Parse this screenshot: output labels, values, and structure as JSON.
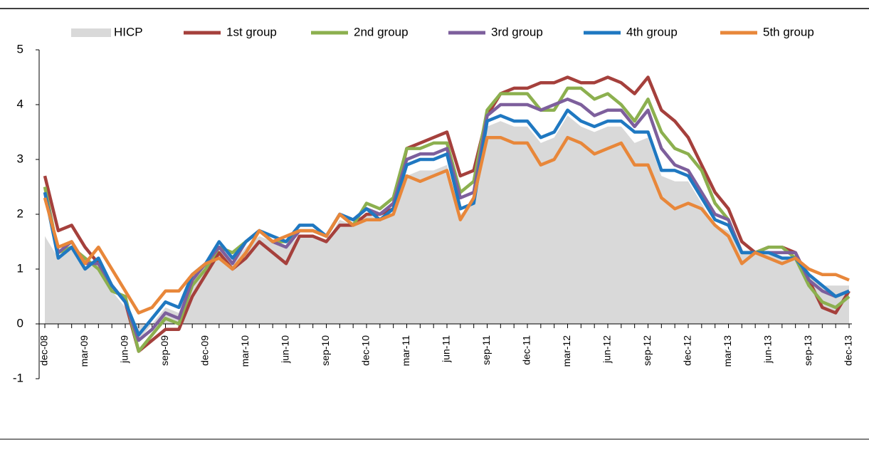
{
  "chart_data": {
    "type": "line",
    "categories": [
      "dec-08",
      null,
      null,
      "mar-09",
      null,
      null,
      "jun-09",
      null,
      null,
      "sep-09",
      null,
      null,
      "dec-09",
      null,
      null,
      "mar-10",
      null,
      null,
      "jun-10",
      null,
      null,
      "sep-10",
      null,
      null,
      "dec-10",
      null,
      null,
      "mar-11",
      null,
      null,
      "jun-11",
      null,
      null,
      "sep-11",
      null,
      null,
      "dec-11",
      null,
      null,
      "mar-12",
      null,
      null,
      "jun-12",
      null,
      null,
      "sep-12",
      null,
      null,
      "dec-12",
      null,
      null,
      "mar-13",
      null,
      null,
      "jun-13",
      null,
      null,
      "sep-13",
      null,
      null,
      "dec-13"
    ],
    "series": [
      {
        "name": "HICP",
        "kind": "area",
        "color": "#d9d9d9",
        "values": [
          1.6,
          1.2,
          1.4,
          1.0,
          1.1,
          0.6,
          0.3,
          -0.3,
          0.0,
          0.3,
          0.2,
          0.8,
          1.0,
          1.3,
          1.1,
          1.4,
          1.6,
          1.5,
          1.4,
          1.6,
          1.6,
          1.5,
          1.9,
          1.8,
          2.0,
          1.9,
          2.0,
          2.7,
          2.8,
          2.8,
          2.9,
          2.0,
          2.2,
          3.6,
          3.7,
          3.6,
          3.6,
          3.3,
          3.4,
          3.8,
          3.6,
          3.5,
          3.6,
          3.6,
          3.3,
          3.4,
          2.7,
          2.6,
          2.6,
          2.2,
          1.8,
          1.7,
          1.3,
          1.3,
          1.3,
          1.2,
          1.2,
          0.9,
          0.7,
          0.7,
          0.7
        ]
      },
      {
        "name": "1st group",
        "kind": "line",
        "color": "#a5403c",
        "values": [
          2.7,
          1.7,
          1.8,
          1.4,
          1.1,
          0.7,
          0.4,
          -0.5,
          -0.3,
          -0.1,
          -0.1,
          0.5,
          0.9,
          1.3,
          1.0,
          1.2,
          1.5,
          1.3,
          1.1,
          1.6,
          1.6,
          1.5,
          1.8,
          1.8,
          2.0,
          2.0,
          2.1,
          3.2,
          3.3,
          3.4,
          3.5,
          2.7,
          2.8,
          3.8,
          4.2,
          4.3,
          4.3,
          4.4,
          4.4,
          4.5,
          4.4,
          4.4,
          4.5,
          4.4,
          4.2,
          4.5,
          3.9,
          3.7,
          3.4,
          2.9,
          2.4,
          2.1,
          1.5,
          1.3,
          1.4,
          1.4,
          1.3,
          0.8,
          0.3,
          0.2,
          0.6
        ]
      },
      {
        "name": "2nd group",
        "kind": "line",
        "color": "#8cb04f",
        "values": [
          2.5,
          1.3,
          1.4,
          1.2,
          1.0,
          0.6,
          0.5,
          -0.5,
          -0.2,
          0.1,
          0.0,
          0.7,
          1.0,
          1.4,
          1.3,
          1.5,
          1.7,
          1.5,
          1.5,
          1.7,
          1.7,
          1.6,
          2.0,
          1.8,
          2.2,
          2.1,
          2.3,
          3.2,
          3.2,
          3.3,
          3.3,
          2.4,
          2.6,
          3.9,
          4.2,
          4.2,
          4.2,
          3.9,
          3.9,
          4.3,
          4.3,
          4.1,
          4.2,
          4.0,
          3.7,
          4.1,
          3.5,
          3.2,
          3.1,
          2.8,
          2.2,
          1.9,
          1.3,
          1.3,
          1.4,
          1.4,
          1.2,
          0.7,
          0.4,
          0.3,
          0.5
        ]
      },
      {
        "name": "3rd group",
        "kind": "line",
        "color": "#7d5f9c",
        "values": [
          2.4,
          1.3,
          1.5,
          1.1,
          1.1,
          0.7,
          0.4,
          -0.3,
          -0.1,
          0.2,
          0.1,
          0.8,
          1.1,
          1.4,
          1.1,
          1.5,
          1.7,
          1.5,
          1.4,
          1.7,
          1.7,
          1.6,
          2.0,
          1.9,
          2.1,
          2.0,
          2.2,
          3.0,
          3.1,
          3.1,
          3.2,
          2.3,
          2.4,
          3.8,
          4.0,
          4.0,
          4.0,
          3.9,
          4.0,
          4.1,
          4.0,
          3.8,
          3.9,
          3.9,
          3.6,
          3.9,
          3.2,
          2.9,
          2.8,
          2.4,
          2.0,
          1.9,
          1.3,
          1.3,
          1.3,
          1.3,
          1.3,
          0.8,
          0.6,
          0.5,
          0.6
        ]
      },
      {
        "name": "4th group",
        "kind": "line",
        "color": "#1f78c1",
        "values": [
          2.4,
          1.2,
          1.4,
          1.0,
          1.2,
          0.7,
          0.4,
          -0.2,
          0.1,
          0.4,
          0.3,
          0.9,
          1.1,
          1.5,
          1.2,
          1.5,
          1.7,
          1.6,
          1.5,
          1.8,
          1.8,
          1.6,
          2.0,
          1.9,
          2.1,
          1.9,
          2.1,
          2.9,
          3.0,
          3.0,
          3.1,
          2.1,
          2.2,
          3.7,
          3.8,
          3.7,
          3.7,
          3.4,
          3.5,
          3.9,
          3.7,
          3.6,
          3.7,
          3.7,
          3.5,
          3.5,
          2.8,
          2.8,
          2.7,
          2.3,
          1.9,
          1.8,
          1.3,
          1.3,
          1.3,
          1.2,
          1.2,
          0.9,
          0.7,
          0.5,
          0.6
        ]
      },
      {
        "name": "5th group",
        "kind": "line",
        "color": "#e8873a",
        "values": [
          2.3,
          1.4,
          1.5,
          1.1,
          1.4,
          1.0,
          0.6,
          0.2,
          0.3,
          0.6,
          0.6,
          0.9,
          1.1,
          1.2,
          1.0,
          1.3,
          1.7,
          1.5,
          1.6,
          1.7,
          1.7,
          1.6,
          2.0,
          1.8,
          1.9,
          1.9,
          2.0,
          2.7,
          2.6,
          2.7,
          2.8,
          1.9,
          2.3,
          3.4,
          3.4,
          3.3,
          3.3,
          2.9,
          3.0,
          3.4,
          3.3,
          3.1,
          3.2,
          3.3,
          2.9,
          2.9,
          2.3,
          2.1,
          2.2,
          2.1,
          1.8,
          1.6,
          1.1,
          1.3,
          1.2,
          1.1,
          1.2,
          1.0,
          0.9,
          0.9,
          0.8
        ]
      }
    ],
    "ylim": [
      -1,
      5
    ],
    "yticks": [
      -1,
      0,
      1,
      2,
      3,
      4,
      5
    ],
    "legend": "top"
  }
}
